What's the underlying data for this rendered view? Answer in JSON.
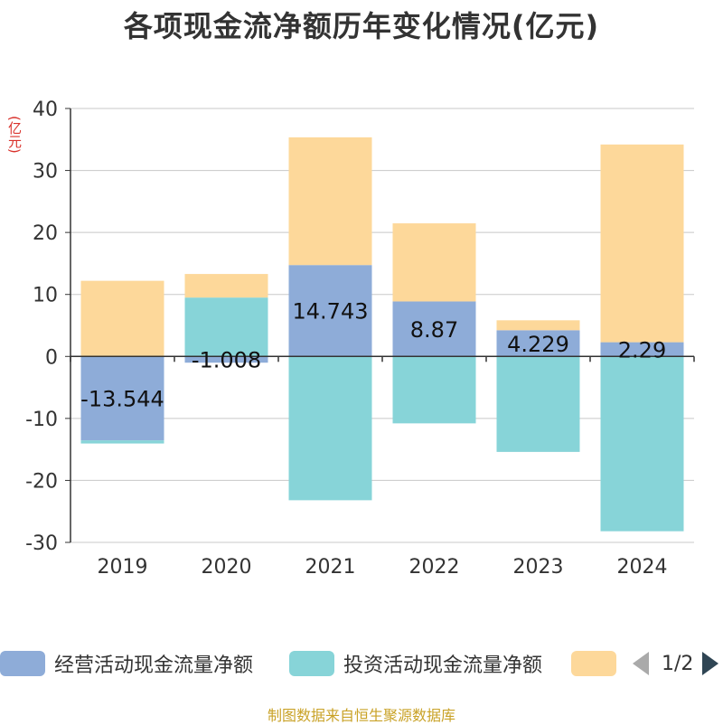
{
  "title": "各项现金流净额历年变化情况(亿元)",
  "unit_label": "(亿元)",
  "footer": "制图数据来自恒生聚源数据库",
  "legend": {
    "items": [
      {
        "label": "经营活动现金流量净额",
        "color": "#8eacd8"
      },
      {
        "label": "投资活动现金流量净额",
        "color": "#87d4d8"
      },
      {
        "label": "",
        "color": "#fdd89a"
      }
    ],
    "page_indicator": "1/2"
  },
  "chart_data": {
    "type": "bar",
    "stacked": true,
    "categories": [
      "2019",
      "2020",
      "2021",
      "2022",
      "2023",
      "2024"
    ],
    "ylim": [
      -30,
      40
    ],
    "yticks": [
      -30,
      -20,
      -10,
      0,
      10,
      20,
      30,
      40
    ],
    "grid": true,
    "legend_position": "bottom",
    "series": [
      {
        "name": "经营活动现金流量净额",
        "color": "#8eacd8",
        "values": [
          -13.544,
          -1.008,
          14.743,
          8.87,
          4.229,
          2.29
        ],
        "data_labels": [
          "-13.544",
          "-1.008",
          "14.743",
          "8.87",
          "4.229",
          "2.29"
        ]
      },
      {
        "name": "投资活动现金流量净额",
        "color": "#87d4d8",
        "values": [
          -0.5,
          9.5,
          -23.2,
          -10.8,
          -15.4,
          -28.2
        ]
      },
      {
        "name": "",
        "color": "#fdd89a",
        "values": [
          12.2,
          3.8,
          20.6,
          12.6,
          1.6,
          31.9
        ]
      }
    ]
  }
}
